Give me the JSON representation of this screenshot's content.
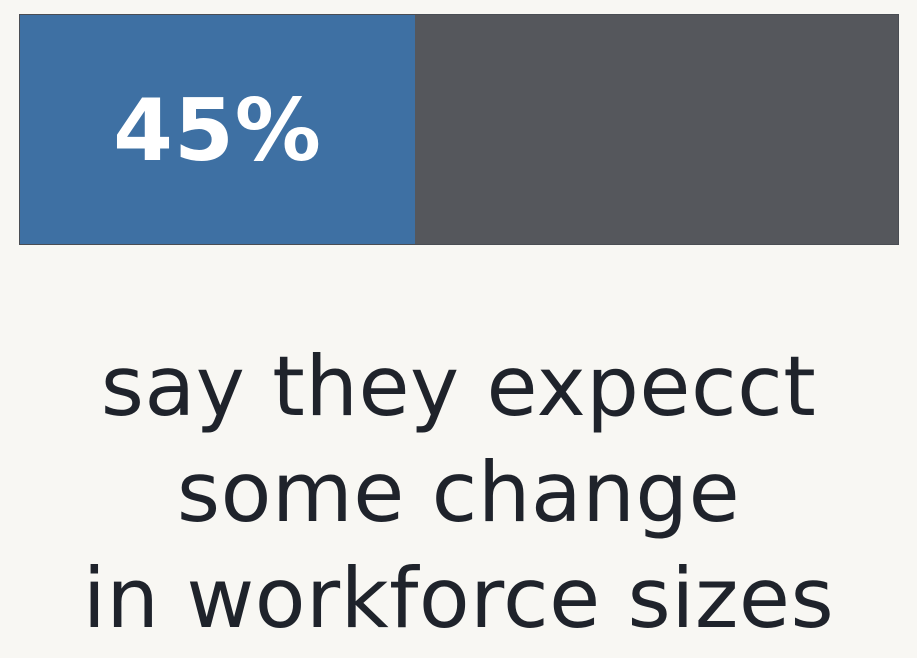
{
  "chart_data": {
    "type": "bar",
    "values": [
      45
    ],
    "max": 100,
    "value_label": "45%",
    "caption_lines": [
      "say they expecct",
      "some change",
      "in workforce sizes"
    ]
  },
  "colors": {
    "filled": "#3e70a3",
    "remainder": "#55575c",
    "background": "#f8f7f3",
    "caption_text": "#1f232b"
  }
}
